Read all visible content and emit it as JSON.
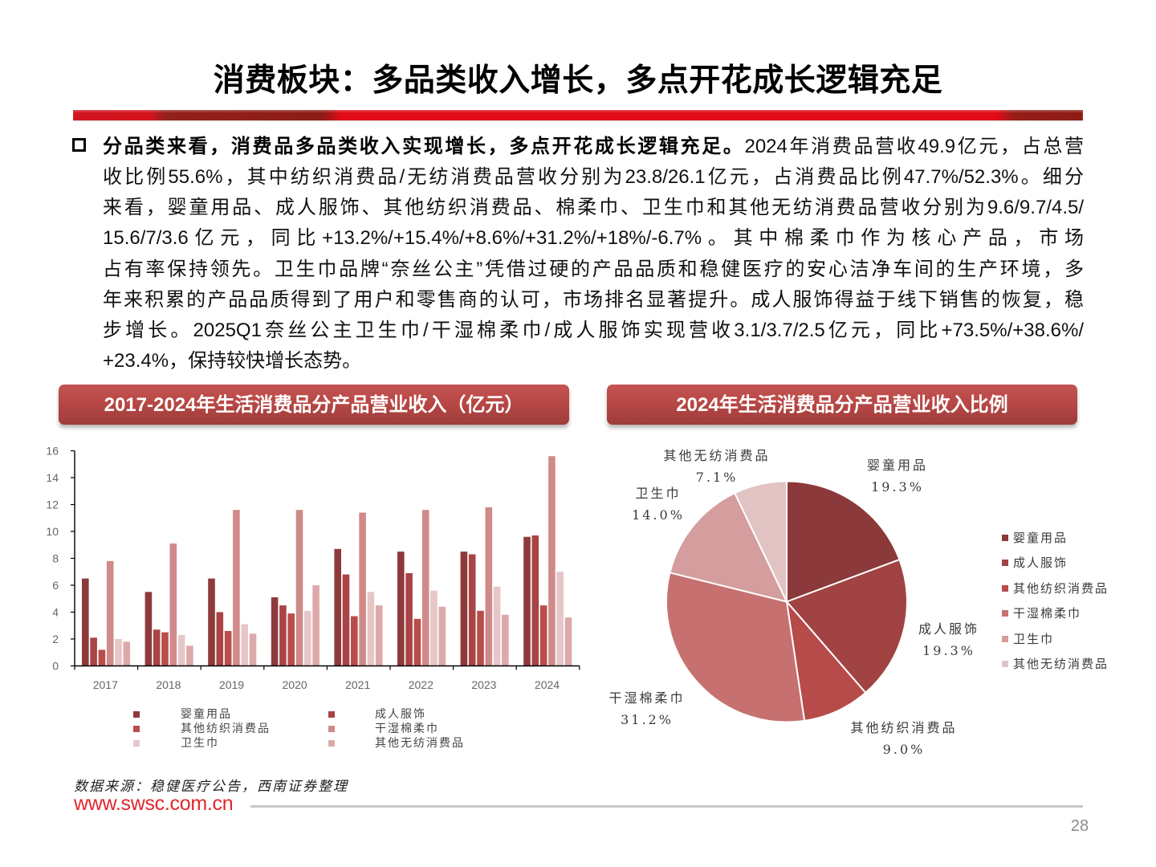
{
  "page": {
    "title": "消费板块：多品类收入增长，多点开花成长逻辑充足",
    "page_number": "28"
  },
  "body": {
    "bullet_icon": "hollow-square",
    "lead": "分品类来看，消费品多品类收入实现增长，多点开花成长逻辑充足。",
    "lines": [
      "2024年消费品营收49.9亿元，占总营",
      "收比例55.6%，其中纺织消费品/无纺消费品营收分别为23.8/26.1亿元，占消费品比例47.7%/52.3%。细分",
      "来看，婴童用品、成人服饰、其他纺织消费品、棉柔巾、卫生巾和其他无纺消费品营收分别为9.6/9.7/4.5/",
      "15.6/7/3.6亿元，同比+13.2%/+15.4%/+8.6%/+31.2%/+18%/-6.7%。其中棉柔巾作为核心产品，市场",
      "占有率保持领先。卫生巾品牌“奈丝公主”凭借过硬的产品品质和稳健医疗的安心洁净车间的生产环境，多",
      "年来积累的产品品质得到了用户和零售商的认可，市场排名显著提升。成人服饰得益于线下销售的恢复，稳",
      "步增长。2025Q1奈丝公主卫生巾/干湿棉柔巾/成人服饰实现营收3.1/3.7/2.5亿元，同比+73.5%/+38.6%/",
      "+23.4%，保持较快增长态势。"
    ]
  },
  "bar_chart": {
    "banner": "2017-2024年生活消费品分产品营业收入（亿元）"
  },
  "pie_chart": {
    "banner": "2024年生活消费品分产品营业收入比例"
  },
  "footer": {
    "source": "数据来源：稳健医疗公告，西南证券整理",
    "website": "www.swsc.com.cn"
  },
  "colors": {
    "title_rule_red": "#e20b18",
    "title_rule_dark": "#8c1c17",
    "banner": "#b84846",
    "website": "#e3262c"
  },
  "chart_data": [
    {
      "type": "bar",
      "title": "2017-2024年生活消费品分产品营业收入（亿元）",
      "xlabel": "",
      "ylabel": "亿元",
      "ylim": [
        0,
        16
      ],
      "ytick_step": 2,
      "grid": false,
      "legend_position": "bottom",
      "categories": [
        "2017",
        "2018",
        "2019",
        "2020",
        "2021",
        "2022",
        "2023",
        "2024"
      ],
      "series": [
        {
          "name": "婴童用品",
          "color": "#8e3a3b",
          "values": [
            6.5,
            5.5,
            6.5,
            5.1,
            8.7,
            8.5,
            8.5,
            9.6
          ]
        },
        {
          "name": "成人服饰",
          "color": "#a84445",
          "values": [
            2.1,
            2.7,
            4.0,
            4.5,
            6.8,
            6.9,
            8.3,
            9.7
          ]
        },
        {
          "name": "其他纺织消费品",
          "color": "#b94d4c",
          "values": [
            1.2,
            2.5,
            2.6,
            3.9,
            3.7,
            3.5,
            4.1,
            4.5
          ]
        },
        {
          "name": "干湿棉柔巾",
          "color": "#d08a8a",
          "values": [
            7.8,
            9.1,
            11.6,
            11.6,
            11.4,
            11.6,
            11.8,
            15.6
          ]
        },
        {
          "name": "卫生巾",
          "color": "#e7c6c8",
          "values": [
            2.0,
            2.3,
            3.1,
            4.1,
            5.5,
            5.6,
            5.9,
            7.0
          ]
        },
        {
          "name": "其他无纺消费品",
          "color": "#dca9aa",
          "values": [
            1.8,
            1.5,
            2.4,
            6.0,
            4.5,
            4.4,
            3.8,
            3.6
          ]
        }
      ]
    },
    {
      "type": "pie",
      "title": "2024年生活消费品分产品营业收入比例",
      "legend_position": "right",
      "start_angle": "12 o'clock, clockwise",
      "slices": [
        {
          "label": "婴童用品",
          "value": 19.3,
          "display": "19.3%",
          "color": "#8b393a"
        },
        {
          "label": "成人服饰",
          "value": 19.3,
          "display": "19.3%",
          "color": "#a24343"
        },
        {
          "label": "其他纺织消费品",
          "value": 9.0,
          "display": "9.0%",
          "color": "#b64b4a"
        },
        {
          "label": "干湿棉柔巾",
          "value": 31.2,
          "display": "31.2%",
          "color": "#c67170"
        },
        {
          "label": "卫生巾",
          "value": 14.0,
          "display": "14.0%",
          "color": "#d59d9d"
        },
        {
          "label": "其他无纺消费品",
          "value": 7.1,
          "display": "7.1%",
          "color": "#e2c3c4"
        }
      ]
    }
  ]
}
